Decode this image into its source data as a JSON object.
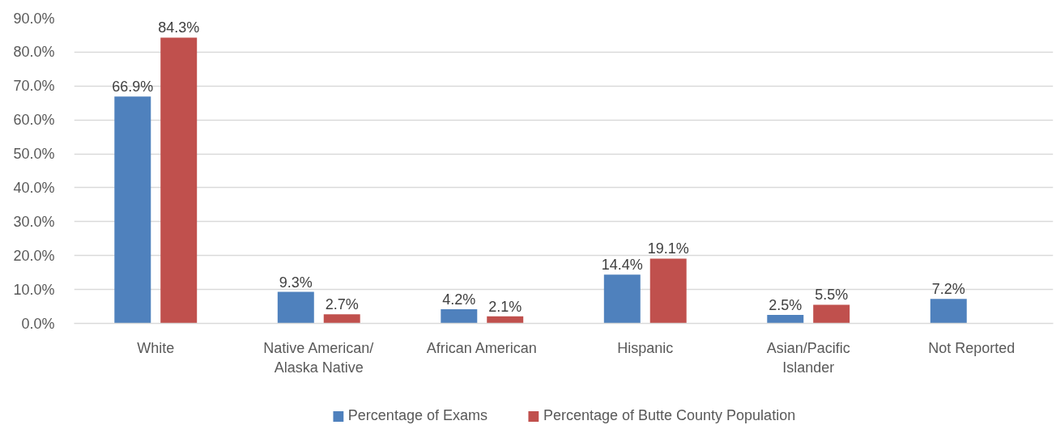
{
  "chart_data": {
    "type": "bar",
    "categories": [
      "White",
      "Native American/\nAlaska Native",
      "African American",
      "Hispanic",
      "Asian/Pacific\nIslander",
      "Not Reported"
    ],
    "series": [
      {
        "name": "Percentage of Exams",
        "color": "#4f81bd",
        "values": [
          66.9,
          9.3,
          4.2,
          14.4,
          2.5,
          7.2
        ],
        "value_labels": [
          "66.9%",
          "9.3%",
          "4.2%",
          "14.4%",
          "2.5%",
          "7.2%"
        ]
      },
      {
        "name": "Percentage of Butte County Population",
        "color": "#c0504d",
        "values": [
          84.3,
          2.7,
          2.1,
          19.1,
          5.5,
          null
        ],
        "value_labels": [
          "84.3%",
          "2.7%",
          "2.1%",
          "19.1%",
          "5.5%",
          null
        ]
      }
    ],
    "ylim": [
      0,
      90
    ],
    "yticks": [
      {
        "value": 0,
        "label": "0.0%"
      },
      {
        "value": 10,
        "label": "10.0%"
      },
      {
        "value": 20,
        "label": "20.0%"
      },
      {
        "value": 30,
        "label": "30.0%"
      },
      {
        "value": 40,
        "label": "40.0%"
      },
      {
        "value": 50,
        "label": "50.0%"
      },
      {
        "value": 60,
        "label": "60.0%"
      },
      {
        "value": 70,
        "label": "70.0%"
      },
      {
        "value": 80,
        "label": "80.0%"
      },
      {
        "value": 90,
        "label": "90.0%"
      }
    ],
    "grid": "y",
    "legend": "bottom"
  }
}
